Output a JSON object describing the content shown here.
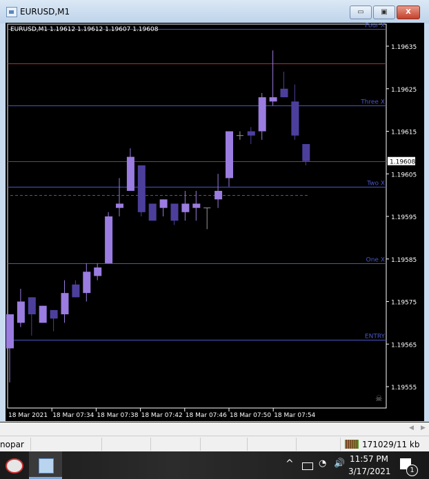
{
  "window": {
    "title": "EURUSD,M1",
    "minimize": "▭",
    "maximize": "▣",
    "close": "X"
  },
  "chart": {
    "header": "EURUSD,M1  1.19612 1.19612 1.19607 1.19608",
    "colors": {
      "bull": "#9b7ce0",
      "bear": "#4c3f9c",
      "level_line": "#4a55c8",
      "red_line": "#b03030",
      "background": "#000000"
    },
    "price_axis": [
      "1.19635",
      "1.19625",
      "1.19615",
      "1.19605",
      "1.19595",
      "1.19585",
      "1.19575",
      "1.19565",
      "1.19555"
    ],
    "current_price": "1.19608",
    "time_axis": [
      "18 Mar 2021",
      "18 Mar 07:34",
      "18 Mar 07:38",
      "18 Mar 07:42",
      "18 Mar 07:46",
      "18 Mar 07:50",
      "18 Mar 07:54"
    ],
    "levels": [
      {
        "label": "Four X",
        "price": 1.19639
      },
      {
        "label": "Three X",
        "price": 1.19621
      },
      {
        "label": "Two X",
        "price": 1.19602
      },
      {
        "label": "One X",
        "price": 1.19584
      },
      {
        "label": "ENTRY",
        "price": 1.19566
      }
    ],
    "red_line_price": 1.19631,
    "dashed_line_price": 1.196,
    "candles": [
      [
        1.19564,
        1.19572,
        1.19556,
        1.19572
      ],
      [
        1.1957,
        1.19578,
        1.19569,
        1.19575
      ],
      [
        1.19576,
        1.19576,
        1.19567,
        1.19572
      ],
      [
        1.1957,
        1.19574,
        1.1957,
        1.19574
      ],
      [
        1.19573,
        1.19573,
        1.19568,
        1.19571
      ],
      [
        1.19572,
        1.1958,
        1.1957,
        1.19577
      ],
      [
        1.19579,
        1.1958,
        1.19576,
        1.19576
      ],
      [
        1.19577,
        1.19584,
        1.19575,
        1.19582
      ],
      [
        1.19581,
        1.19584,
        1.1958,
        1.19583
      ],
      [
        1.19584,
        1.19596,
        1.19584,
        1.19595
      ],
      [
        1.19597,
        1.19604,
        1.19595,
        1.19598
      ],
      [
        1.19601,
        1.19611,
        1.19601,
        1.19609
      ],
      [
        1.19607,
        1.19607,
        1.19595,
        1.19596
      ],
      [
        1.19598,
        1.19598,
        1.19594,
        1.19594
      ],
      [
        1.19597,
        1.19599,
        1.19595,
        1.19599
      ],
      [
        1.19598,
        1.19598,
        1.19593,
        1.19594
      ],
      [
        1.19596,
        1.19601,
        1.19594,
        1.19598
      ],
      [
        1.19597,
        1.19601,
        1.19594,
        1.19598
      ],
      [
        1.19597,
        1.19597,
        1.19592,
        1.19597
      ],
      [
        1.19599,
        1.19605,
        1.19597,
        1.19601
      ],
      [
        1.19604,
        1.19615,
        1.19602,
        1.19615
      ],
      [
        1.19614,
        1.19615,
        1.19613,
        1.19614
      ],
      [
        1.19615,
        1.19616,
        1.19612,
        1.19614
      ],
      [
        1.19615,
        1.19624,
        1.19613,
        1.19623
      ],
      [
        1.19622,
        1.19634,
        1.19621,
        1.19623
      ],
      [
        1.19625,
        1.19629,
        1.19623,
        1.19623
      ],
      [
        1.19622,
        1.19626,
        1.19613,
        1.19614
      ],
      [
        1.19612,
        1.19612,
        1.19607,
        1.19608
      ]
    ]
  },
  "status_bar": {
    "left_text": "nopar",
    "traffic": "171029/11 kb"
  },
  "taskbar": {
    "time": "11:57 PM",
    "date": "3/17/2021",
    "notification_count": "1",
    "tray_chevron": "^",
    "volume": "🔊"
  }
}
